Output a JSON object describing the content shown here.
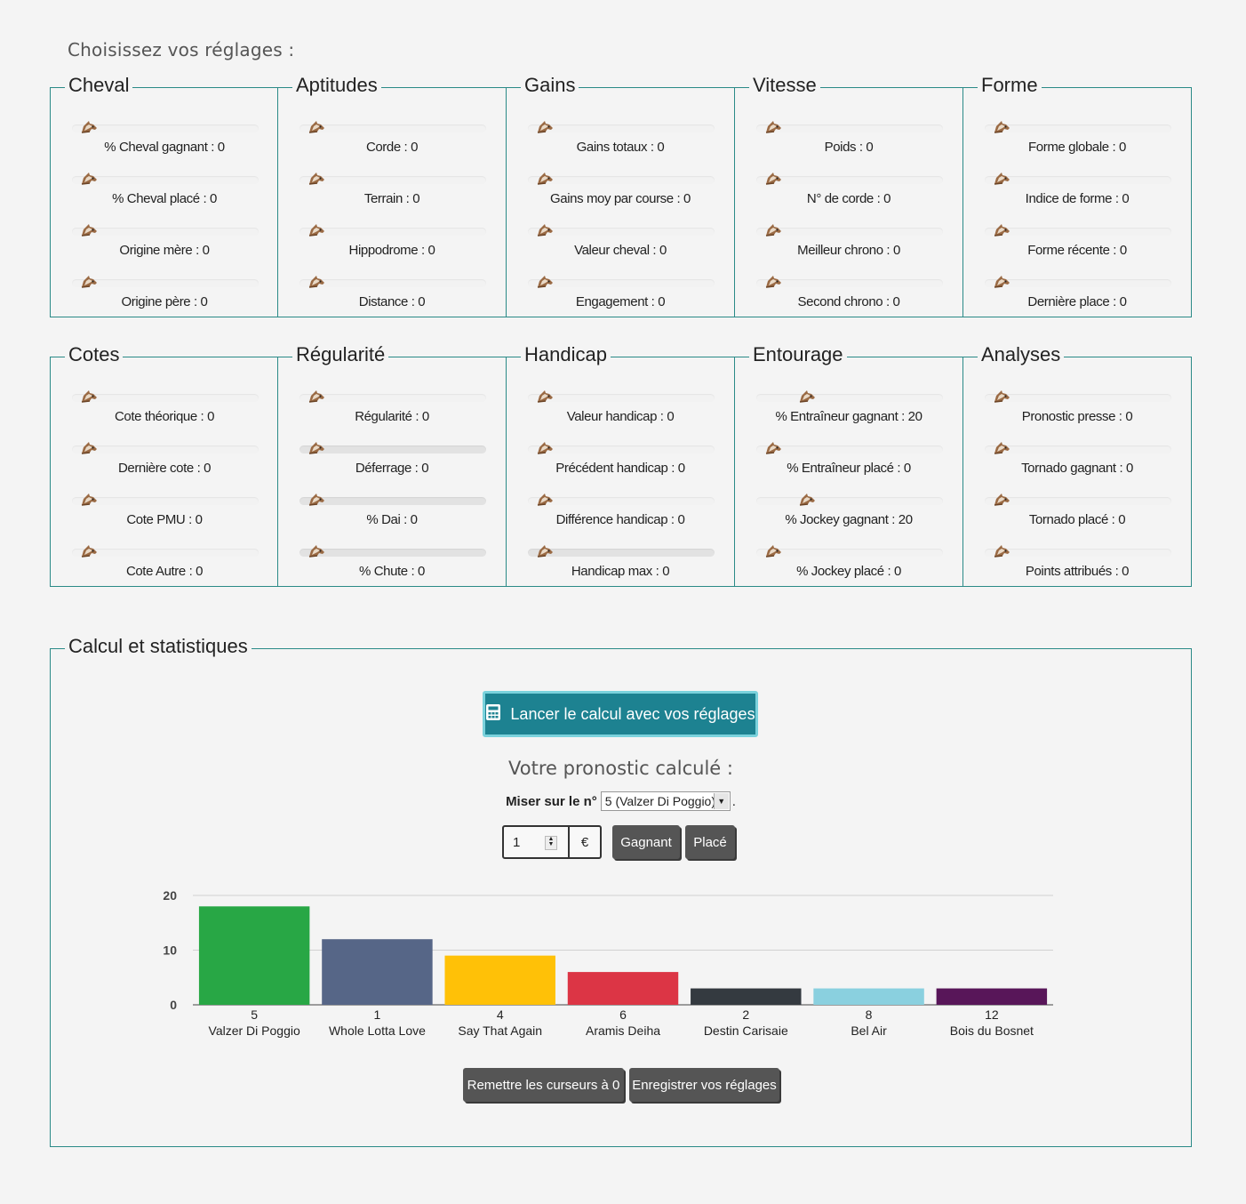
{
  "heading": "Choisissez vos réglages :",
  "panels_row1": [
    {
      "title": "Cheval",
      "sliders": [
        {
          "label": "% Cheval gagnant : 0",
          "value": 0
        },
        {
          "label": "% Cheval placé : 0",
          "value": 0
        },
        {
          "label": "Origine mère : 0",
          "value": 0
        },
        {
          "label": "Origine père : 0",
          "value": 0
        }
      ]
    },
    {
      "title": "Aptitudes",
      "sliders": [
        {
          "label": "Corde : 0",
          "value": 0
        },
        {
          "label": "Terrain : 0",
          "value": 0
        },
        {
          "label": "Hippodrome : 0",
          "value": 0
        },
        {
          "label": "Distance : 0",
          "value": 0
        }
      ]
    },
    {
      "title": "Gains",
      "sliders": [
        {
          "label": "Gains totaux : 0",
          "value": 0
        },
        {
          "label": "Gains moy par course : 0",
          "value": 0
        },
        {
          "label": "Valeur cheval : 0",
          "value": 0
        },
        {
          "label": "Engagement : 0",
          "value": 0
        }
      ]
    },
    {
      "title": "Vitesse",
      "sliders": [
        {
          "label": "Poids : 0",
          "value": 0
        },
        {
          "label": "N° de corde : 0",
          "value": 0
        },
        {
          "label": "Meilleur chrono : 0",
          "value": 0
        },
        {
          "label": "Second chrono : 0",
          "value": 0
        }
      ]
    },
    {
      "title": "Forme",
      "sliders": [
        {
          "label": "Forme globale : 0",
          "value": 0
        },
        {
          "label": "Indice de forme : 0",
          "value": 0
        },
        {
          "label": "Forme récente : 0",
          "value": 0
        },
        {
          "label": "Dernière place : 0",
          "value": 0
        }
      ]
    }
  ],
  "panels_row2": [
    {
      "title": "Cotes",
      "sliders": [
        {
          "label": "Cote théorique : 0",
          "value": 0
        },
        {
          "label": "Dernière cote : 0",
          "value": 0
        },
        {
          "label": "Cote PMU : 0",
          "value": 0
        },
        {
          "label": "Cote Autre : 0",
          "value": 0
        }
      ]
    },
    {
      "title": "Régularité",
      "sliders": [
        {
          "label": "Régularité : 0",
          "value": 0
        },
        {
          "label": "Déferrage : 0",
          "value": 0
        },
        {
          "label": "% Dai : 0",
          "value": 0
        },
        {
          "label": "% Chute : 0",
          "value": 0
        }
      ]
    },
    {
      "title": "Handicap",
      "sliders": [
        {
          "label": "Valeur handicap : 0",
          "value": 0
        },
        {
          "label": "Précédent handicap : 0",
          "value": 0
        },
        {
          "label": "Différence handicap : 0",
          "value": 0
        },
        {
          "label": "Handicap max : 0",
          "value": 0
        }
      ]
    },
    {
      "title": "Entourage",
      "sliders": [
        {
          "label": "% Entraîneur gagnant : 20",
          "value": 20
        },
        {
          "label": "% Entraîneur placé : 0",
          "value": 0
        },
        {
          "label": "% Jockey gagnant : 20",
          "value": 20
        },
        {
          "label": "% Jockey placé : 0",
          "value": 0
        }
      ]
    },
    {
      "title": "Analyses",
      "sliders": [
        {
          "label": "Pronostic presse : 0",
          "value": 0
        },
        {
          "label": "Tornado gagnant : 0",
          "value": 0
        },
        {
          "label": "Tornado placé : 0",
          "value": 0
        },
        {
          "label": "Points attribués : 0",
          "value": 0
        }
      ]
    }
  ],
  "calc": {
    "title": "Calcul et statistiques",
    "launch_label": "Lancer le calcul avec vos réglages",
    "prono_title": "Votre pronostic calculé :",
    "miser_label": "Miser sur le n°",
    "miser_selected": "5 (Valzer Di Poggio)",
    "miser_suffix": ".",
    "stake_value": "1",
    "currency": "€",
    "btn_gagnant": "Gagnant",
    "btn_place": "Placé",
    "btn_reset": "Remettre les curseurs à 0",
    "btn_save": "Enregistrer vos réglages"
  },
  "chart_data": {
    "type": "bar",
    "categories": [
      "5",
      "1",
      "4",
      "6",
      "2",
      "8",
      "12"
    ],
    "names": [
      "Valzer Di Poggio",
      "Whole Lotta Love",
      "Say That Again",
      "Aramis Deiha",
      "Destin Carisaie",
      "Bel Air",
      "Bois du Bosnet"
    ],
    "values": [
      18,
      12,
      9,
      6,
      3,
      3,
      3
    ],
    "colors": [
      "#28a745",
      "#566687",
      "#ffc107",
      "#dc3545",
      "#343a40",
      "#8ad0df",
      "#581659"
    ],
    "yticks": [
      "0",
      "10",
      "20"
    ],
    "ylim": [
      0,
      20
    ],
    "grid": true
  }
}
